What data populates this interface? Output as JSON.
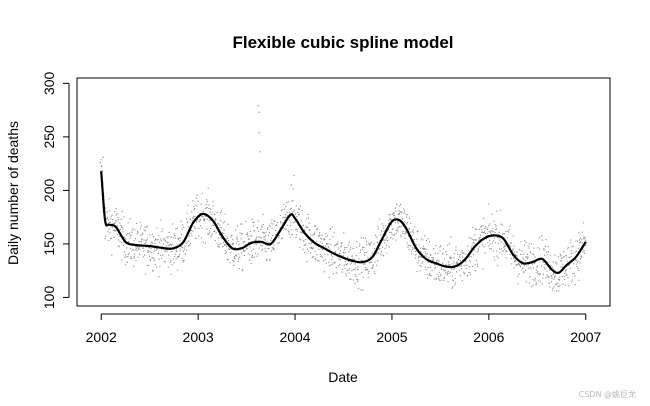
{
  "chart_data": {
    "type": "scatter",
    "title": "Flexible cubic spline model",
    "xlabel": "Date",
    "ylabel": "Daily number of deaths",
    "xlim": [
      2001.75,
      2007.25
    ],
    "ylim": [
      92,
      305
    ],
    "x_ticks": [
      2002,
      2003,
      2004,
      2005,
      2006,
      2007
    ],
    "x_tick_labels": [
      "2002",
      "2003",
      "2004",
      "2005",
      "2006",
      "2007"
    ],
    "y_ticks": [
      100,
      150,
      200,
      250,
      300
    ],
    "y_tick_labels": [
      "100",
      "150",
      "200",
      "250",
      "300"
    ],
    "grid": false,
    "legend": "none",
    "colors": {
      "points": "#8a8a8a",
      "fit_line": "#000000",
      "axes": "#000000"
    },
    "series": [
      {
        "kind": "fitted_spline",
        "x": [
          2002.0,
          2002.04,
          2002.08,
          2002.15,
          2002.25,
          2002.35,
          2002.5,
          2002.65,
          2002.75,
          2002.85,
          2002.95,
          2003.05,
          2003.15,
          2003.25,
          2003.35,
          2003.45,
          2003.55,
          2003.65,
          2003.75,
          2003.85,
          2003.95,
          2004.0,
          2004.1,
          2004.2,
          2004.3,
          2004.4,
          2004.5,
          2004.6,
          2004.7,
          2004.8,
          2004.9,
          2005.0,
          2005.08,
          2005.15,
          2005.25,
          2005.35,
          2005.45,
          2005.55,
          2005.65,
          2005.75,
          2005.85,
          2005.95,
          2006.05,
          2006.15,
          2006.25,
          2006.35,
          2006.45,
          2006.55,
          2006.65,
          2006.72,
          2006.8,
          2006.9,
          2007.0
        ],
        "y": [
          218,
          172,
          168,
          166,
          152,
          149,
          148,
          146,
          146,
          152,
          170,
          178,
          172,
          157,
          146,
          146,
          151,
          152,
          150,
          163,
          177,
          174,
          160,
          151,
          146,
          141,
          137,
          134,
          133,
          138,
          155,
          171,
          172,
          164,
          146,
          136,
          132,
          129,
          129,
          135,
          147,
          155,
          158,
          155,
          140,
          132,
          133,
          136,
          126,
          123,
          130,
          138,
          152
        ]
      },
      {
        "kind": "daily_observations",
        "y_range": [
          100,
          280
        ],
        "outliers": [
          {
            "x": 2003.62,
            "y": 279
          },
          {
            "x": 2003.63,
            "y": 273
          },
          {
            "x": 2003.63,
            "y": 254
          },
          {
            "x": 2003.64,
            "y": 236
          },
          {
            "x": 2003.99,
            "y": 214
          },
          {
            "x": 2003.96,
            "y": 205
          },
          {
            "x": 2002.02,
            "y": 231
          },
          {
            "x": 2001.99,
            "y": 226
          }
        ]
      }
    ]
  },
  "watermark": "CSDN @姚巨龙"
}
